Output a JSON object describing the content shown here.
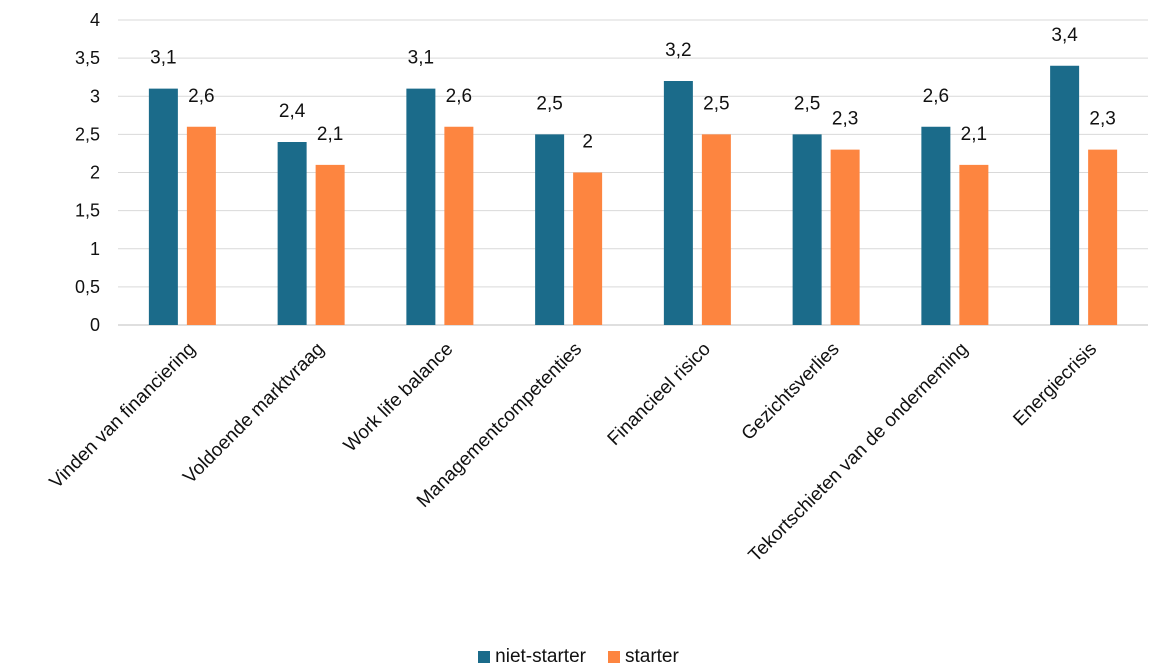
{
  "chart_data": {
    "type": "bar",
    "title": "",
    "xlabel": "",
    "ylabel": "",
    "ylim": [
      0,
      4
    ],
    "yticks": [
      "0",
      "0,5",
      "1",
      "1,5",
      "2",
      "2,5",
      "3",
      "3,5",
      "4"
    ],
    "ytick_values": [
      0,
      0.5,
      1,
      1.5,
      2,
      2.5,
      3,
      3.5,
      4
    ],
    "grid": true,
    "legend_position": "bottom",
    "categories": [
      "Vinden van financiering",
      "Voldoende marktvraag",
      "Work life balance",
      "Managementcompetenties",
      "Financieel risico",
      "Gezichtsverlies",
      "Tekortschieten van de onderneming",
      "Energiecrisis"
    ],
    "series": [
      {
        "name": "niet-starter",
        "color": "#1b6b8a",
        "values": [
          3.1,
          2.4,
          3.1,
          2.5,
          3.2,
          2.5,
          2.6,
          3.4
        ],
        "labels": [
          "3,1",
          "2,4",
          "3,1",
          "2,5",
          "3,2",
          "2,5",
          "2,6",
          "3,4"
        ]
      },
      {
        "name": "starter",
        "color": "#fd8540",
        "values": [
          2.6,
          2.1,
          2.6,
          2.0,
          2.5,
          2.3,
          2.1,
          2.3
        ],
        "labels": [
          "2,6",
          "2,1",
          "2,6",
          "2",
          "2,5",
          "2,3",
          "2,1",
          "2,3"
        ]
      }
    ]
  }
}
